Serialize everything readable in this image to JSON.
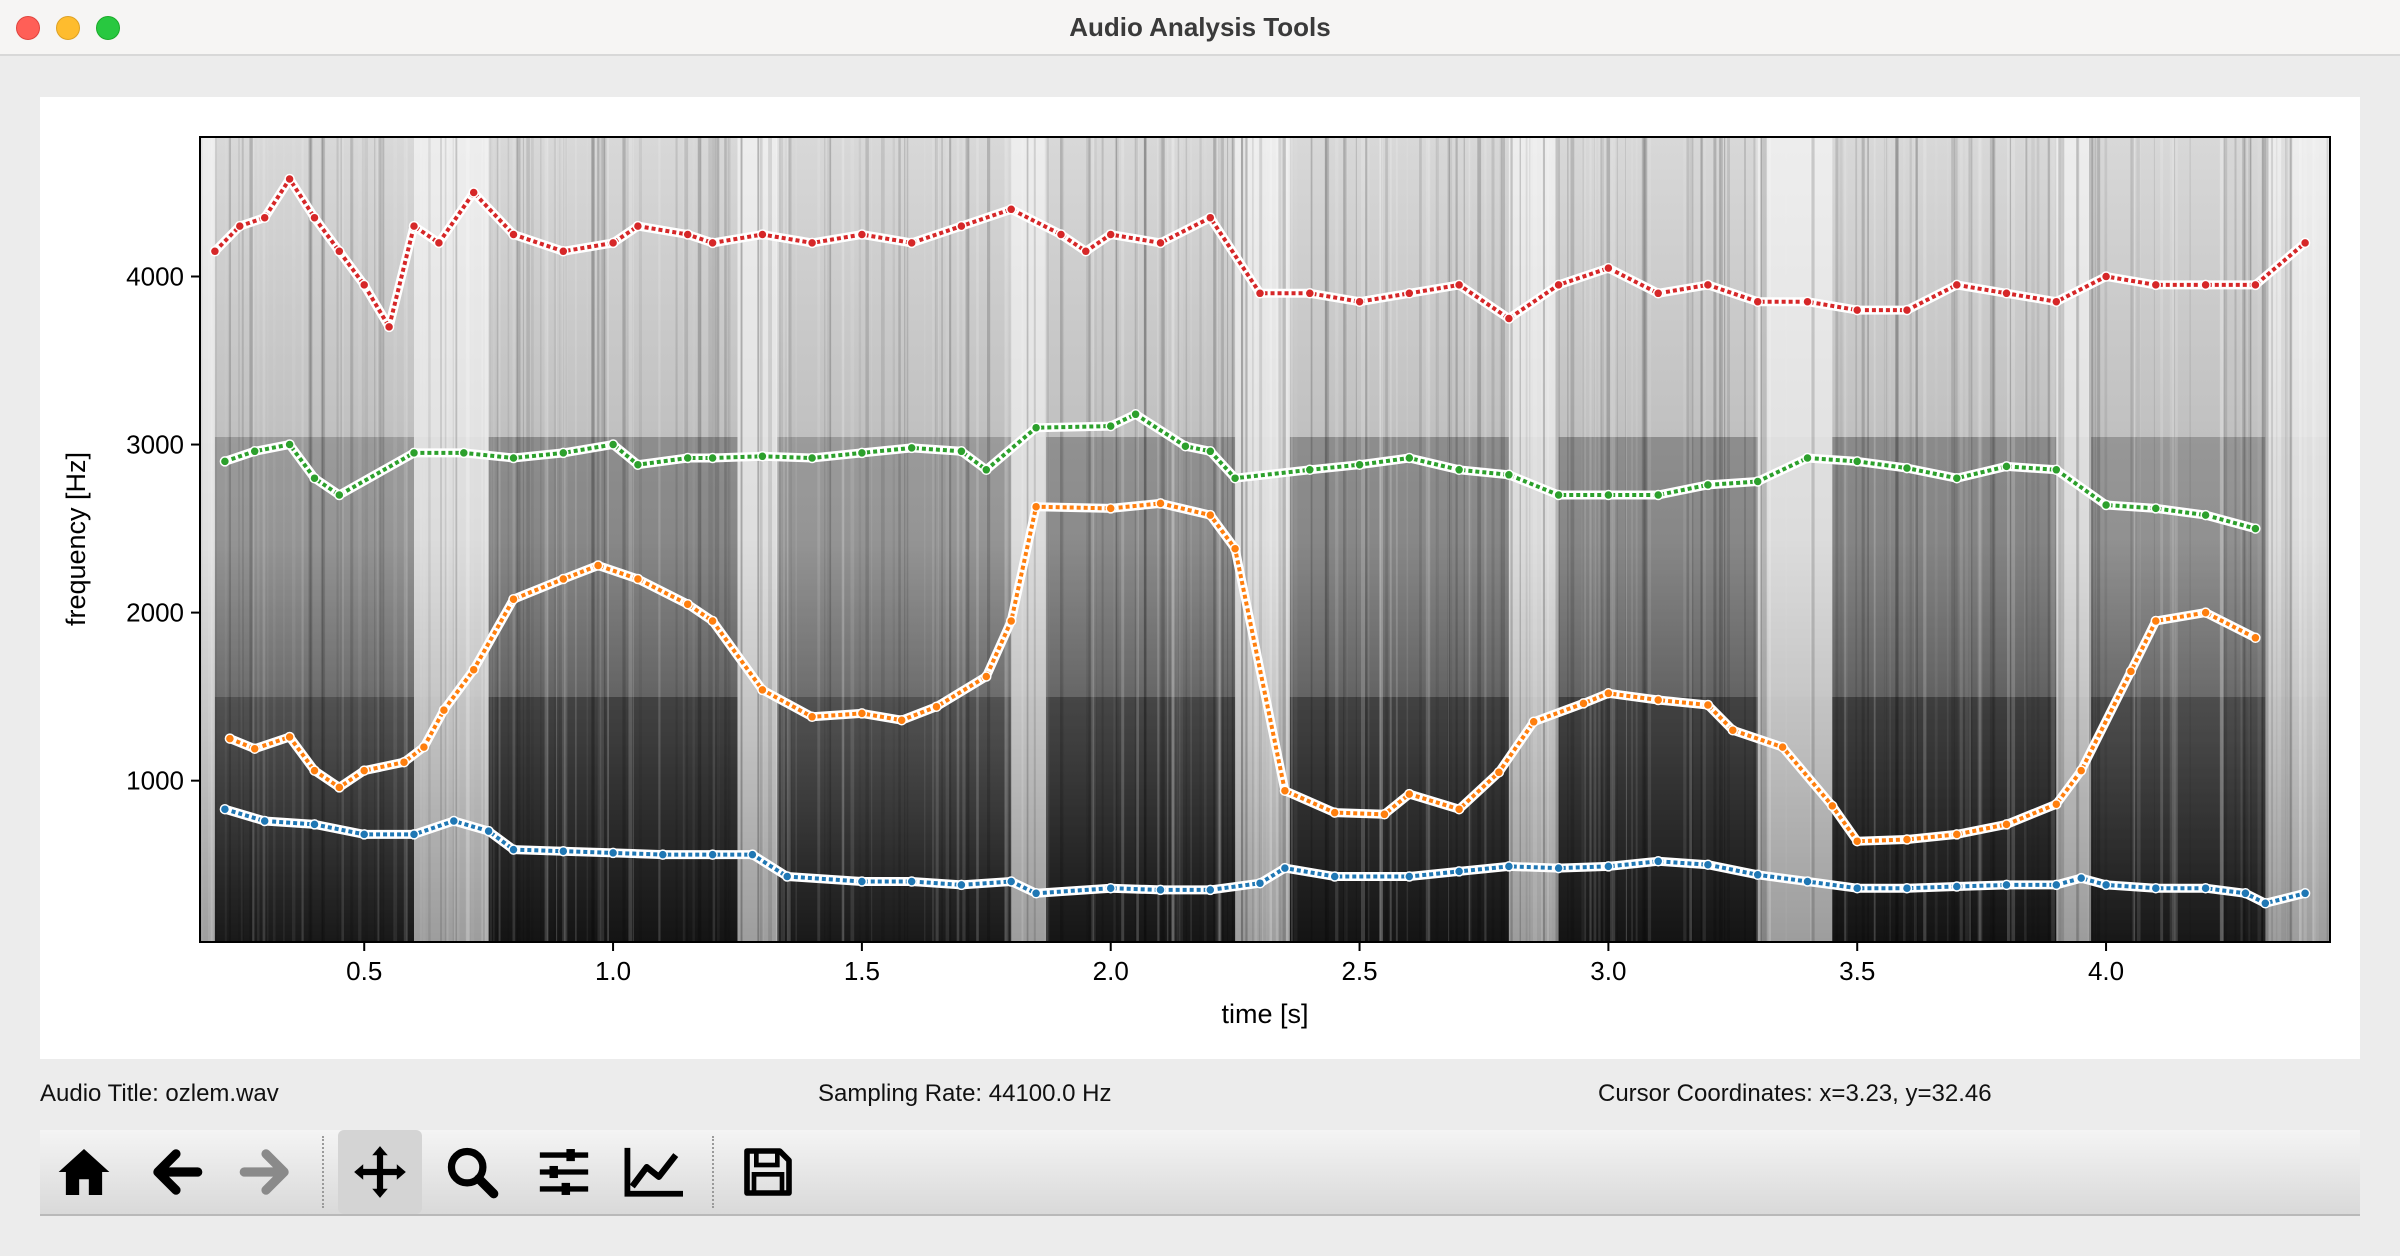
{
  "window": {
    "title": "Audio Analysis Tools"
  },
  "status": {
    "audio_title": "Audio Title: ozlem.wav",
    "sampling_rate": "Sampling Rate: 44100.0 Hz",
    "cursor": "Cursor Coordinates: x=3.23, y=32.46"
  },
  "toolbar": {
    "buttons": [
      {
        "name": "home-button",
        "icon": "home-icon"
      },
      {
        "name": "back-button",
        "icon": "arrow-left-icon"
      },
      {
        "name": "forward-button",
        "icon": "arrow-right-icon",
        "disabled": true
      },
      {
        "name": "pan-button",
        "icon": "move-icon",
        "active": true
      },
      {
        "name": "zoom-button",
        "icon": "magnifier-icon"
      },
      {
        "name": "subplots-button",
        "icon": "sliders-icon"
      },
      {
        "name": "edit-axis-button",
        "icon": "line-chart-icon"
      },
      {
        "name": "save-button",
        "icon": "floppy-disk-icon"
      }
    ]
  },
  "chart_data": {
    "type": "scatter",
    "background": "spectrogram (grayscale)",
    "title": "",
    "xlabel": "time [s]",
    "ylabel": "frequency [Hz]",
    "xlim": [
      0.17,
      4.45
    ],
    "ylim": [
      40,
      4830
    ],
    "xticks": [
      0.5,
      1.0,
      1.5,
      2.0,
      2.5,
      3.0,
      3.5,
      4.0
    ],
    "xtick_labels": [
      "0.5",
      "1.0",
      "1.5",
      "2.0",
      "2.5",
      "3.0",
      "3.5",
      "4.0"
    ],
    "yticks": [
      1000,
      2000,
      3000,
      4000
    ],
    "ytick_labels": [
      "1000",
      "2000",
      "3000",
      "4000"
    ],
    "grid": false,
    "legend": false,
    "series": [
      {
        "color": "#1f77b4",
        "points": [
          [
            0.22,
            830
          ],
          [
            0.3,
            760
          ],
          [
            0.4,
            740
          ],
          [
            0.5,
            680
          ],
          [
            0.6,
            680
          ],
          [
            0.68,
            760
          ],
          [
            0.75,
            700
          ],
          [
            0.8,
            590
          ],
          [
            0.9,
            580
          ],
          [
            1.0,
            570
          ],
          [
            1.1,
            560
          ],
          [
            1.2,
            560
          ],
          [
            1.28,
            560
          ],
          [
            1.35,
            430
          ],
          [
            1.5,
            400
          ],
          [
            1.6,
            400
          ],
          [
            1.7,
            380
          ],
          [
            1.8,
            400
          ],
          [
            1.85,
            330
          ],
          [
            2.0,
            360
          ],
          [
            2.1,
            350
          ],
          [
            2.2,
            350
          ],
          [
            2.3,
            390
          ],
          [
            2.35,
            480
          ],
          [
            2.45,
            430
          ],
          [
            2.6,
            430
          ],
          [
            2.7,
            460
          ],
          [
            2.8,
            490
          ],
          [
            2.9,
            480
          ],
          [
            3.0,
            490
          ],
          [
            3.1,
            520
          ],
          [
            3.2,
            500
          ],
          [
            3.3,
            440
          ],
          [
            3.4,
            400
          ],
          [
            3.5,
            360
          ],
          [
            3.6,
            360
          ],
          [
            3.7,
            370
          ],
          [
            3.8,
            380
          ],
          [
            3.9,
            380
          ],
          [
            3.95,
            420
          ],
          [
            4.0,
            380
          ],
          [
            4.1,
            360
          ],
          [
            4.2,
            360
          ],
          [
            4.28,
            330
          ],
          [
            4.32,
            270
          ],
          [
            4.4,
            330
          ]
        ]
      },
      {
        "color": "#ff7f0e",
        "points": [
          [
            0.23,
            1250
          ],
          [
            0.28,
            1190
          ],
          [
            0.35,
            1260
          ],
          [
            0.4,
            1060
          ],
          [
            0.45,
            960
          ],
          [
            0.5,
            1060
          ],
          [
            0.58,
            1110
          ],
          [
            0.62,
            1200
          ],
          [
            0.66,
            1420
          ],
          [
            0.72,
            1660
          ],
          [
            0.8,
            2080
          ],
          [
            0.9,
            2200
          ],
          [
            0.97,
            2280
          ],
          [
            1.05,
            2200
          ],
          [
            1.15,
            2050
          ],
          [
            1.2,
            1950
          ],
          [
            1.3,
            1540
          ],
          [
            1.4,
            1380
          ],
          [
            1.5,
            1400
          ],
          [
            1.58,
            1360
          ],
          [
            1.65,
            1440
          ],
          [
            1.75,
            1620
          ],
          [
            1.8,
            1950
          ],
          [
            1.85,
            2630
          ],
          [
            2.0,
            2620
          ],
          [
            2.1,
            2650
          ],
          [
            2.2,
            2580
          ],
          [
            2.25,
            2380
          ],
          [
            2.35,
            940
          ],
          [
            2.45,
            810
          ],
          [
            2.55,
            800
          ],
          [
            2.6,
            920
          ],
          [
            2.7,
            830
          ],
          [
            2.78,
            1050
          ],
          [
            2.85,
            1350
          ],
          [
            2.95,
            1460
          ],
          [
            3.0,
            1520
          ],
          [
            3.1,
            1480
          ],
          [
            3.2,
            1450
          ],
          [
            3.25,
            1300
          ],
          [
            3.35,
            1200
          ],
          [
            3.45,
            850
          ],
          [
            3.5,
            640
          ],
          [
            3.6,
            650
          ],
          [
            3.7,
            680
          ],
          [
            3.8,
            740
          ],
          [
            3.9,
            860
          ],
          [
            3.95,
            1060
          ],
          [
            4.05,
            1650
          ],
          [
            4.1,
            1950
          ],
          [
            4.2,
            2000
          ],
          [
            4.3,
            1850
          ]
        ]
      },
      {
        "color": "#2ca02c",
        "points": [
          [
            0.22,
            2900
          ],
          [
            0.28,
            2960
          ],
          [
            0.35,
            3000
          ],
          [
            0.4,
            2800
          ],
          [
            0.45,
            2700
          ],
          [
            0.6,
            2950
          ],
          [
            0.7,
            2950
          ],
          [
            0.8,
            2920
          ],
          [
            0.9,
            2950
          ],
          [
            1.0,
            3000
          ],
          [
            1.05,
            2880
          ],
          [
            1.15,
            2920
          ],
          [
            1.2,
            2920
          ],
          [
            1.3,
            2930
          ],
          [
            1.4,
            2920
          ],
          [
            1.5,
            2950
          ],
          [
            1.6,
            2980
          ],
          [
            1.7,
            2960
          ],
          [
            1.75,
            2850
          ],
          [
            1.85,
            3100
          ],
          [
            2.0,
            3110
          ],
          [
            2.05,
            3180
          ],
          [
            2.15,
            2990
          ],
          [
            2.2,
            2960
          ],
          [
            2.25,
            2800
          ],
          [
            2.4,
            2850
          ],
          [
            2.5,
            2880
          ],
          [
            2.6,
            2920
          ],
          [
            2.7,
            2850
          ],
          [
            2.8,
            2820
          ],
          [
            2.9,
            2700
          ],
          [
            3.0,
            2700
          ],
          [
            3.1,
            2700
          ],
          [
            3.2,
            2760
          ],
          [
            3.3,
            2780
          ],
          [
            3.4,
            2920
          ],
          [
            3.5,
            2900
          ],
          [
            3.6,
            2860
          ],
          [
            3.7,
            2800
          ],
          [
            3.8,
            2870
          ],
          [
            3.9,
            2850
          ],
          [
            4.0,
            2640
          ],
          [
            4.1,
            2620
          ],
          [
            4.2,
            2580
          ],
          [
            4.3,
            2500
          ]
        ]
      },
      {
        "color": "#d62728",
        "points": [
          [
            0.2,
            4150
          ],
          [
            0.25,
            4300
          ],
          [
            0.3,
            4350
          ],
          [
            0.35,
            4580
          ],
          [
            0.4,
            4350
          ],
          [
            0.45,
            4150
          ],
          [
            0.5,
            3950
          ],
          [
            0.55,
            3700
          ],
          [
            0.6,
            4300
          ],
          [
            0.65,
            4200
          ],
          [
            0.72,
            4500
          ],
          [
            0.8,
            4250
          ],
          [
            0.9,
            4150
          ],
          [
            1.0,
            4200
          ],
          [
            1.05,
            4300
          ],
          [
            1.15,
            4250
          ],
          [
            1.2,
            4200
          ],
          [
            1.3,
            4250
          ],
          [
            1.4,
            4200
          ],
          [
            1.5,
            4250
          ],
          [
            1.6,
            4200
          ],
          [
            1.7,
            4300
          ],
          [
            1.8,
            4400
          ],
          [
            1.9,
            4250
          ],
          [
            1.95,
            4150
          ],
          [
            2.0,
            4250
          ],
          [
            2.1,
            4200
          ],
          [
            2.2,
            4350
          ],
          [
            2.3,
            3900
          ],
          [
            2.4,
            3900
          ],
          [
            2.5,
            3850
          ],
          [
            2.6,
            3900
          ],
          [
            2.7,
            3950
          ],
          [
            2.8,
            3750
          ],
          [
            2.9,
            3950
          ],
          [
            3.0,
            4050
          ],
          [
            3.1,
            3900
          ],
          [
            3.2,
            3950
          ],
          [
            3.3,
            3850
          ],
          [
            3.4,
            3850
          ],
          [
            3.5,
            3800
          ],
          [
            3.6,
            3800
          ],
          [
            3.7,
            3950
          ],
          [
            3.8,
            3900
          ],
          [
            3.9,
            3850
          ],
          [
            4.0,
            4000
          ],
          [
            4.1,
            3950
          ],
          [
            4.2,
            3950
          ],
          [
            4.3,
            3950
          ],
          [
            4.4,
            4200
          ]
        ]
      }
    ]
  }
}
